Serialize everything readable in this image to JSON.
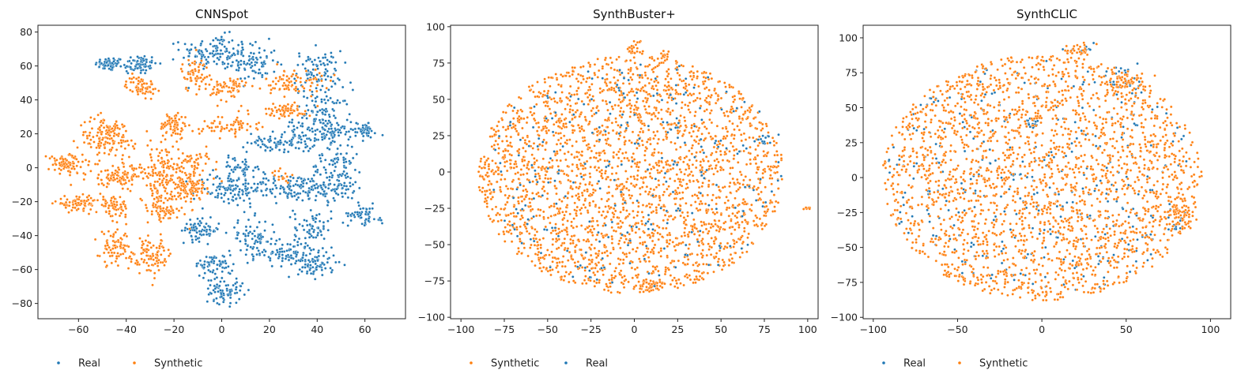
{
  "colors": {
    "real": "#1f77b4",
    "synthetic": "#ff7f0e"
  },
  "chart_data": [
    {
      "type": "scatter",
      "title": "CNNSpot",
      "xlabel": "",
      "ylabel": "",
      "xlim": [
        -77,
        77
      ],
      "ylim": [
        -89,
        84
      ],
      "xticks": [
        "-60",
        "-40",
        "-20",
        "0",
        "20",
        "40",
        "60"
      ],
      "yticks": [
        "-80",
        "-60",
        "-40",
        "-20",
        "0",
        "20",
        "40",
        "60",
        "80"
      ],
      "legend_position": "bottom-left",
      "series": [
        {
          "name": "Real",
          "color_key": "real",
          "clusters": [
            {
              "cx": -47,
              "cy": 61,
              "sx": 3,
              "sy": 2,
              "n": 60
            },
            {
              "cx": -35,
              "cy": 61,
              "sx": 4,
              "sy": 3,
              "n": 70
            },
            {
              "cx": -3,
              "cy": 68,
              "sx": 7,
              "sy": 5,
              "n": 120
            },
            {
              "cx": 13,
              "cy": 62,
              "sx": 5,
              "sy": 6,
              "n": 80
            },
            {
              "cx": 40,
              "cy": 57,
              "sx": 5,
              "sy": 6,
              "n": 90
            },
            {
              "cx": 42,
              "cy": 30,
              "sx": 6,
              "sy": 8,
              "n": 110
            },
            {
              "cx": 25,
              "cy": 15,
              "sx": 7,
              "sy": 3,
              "n": 90
            },
            {
              "cx": 47,
              "cy": 20,
              "sx": 7,
              "sy": 4,
              "n": 80
            },
            {
              "cx": 60,
              "cy": 22,
              "sx": 2,
              "sy": 2,
              "n": 30
            },
            {
              "cx": 8,
              "cy": 0,
              "sx": 5,
              "sy": 3,
              "n": 50
            },
            {
              "cx": 3,
              "cy": -13,
              "sx": 7,
              "sy": 5,
              "n": 100
            },
            {
              "cx": 30,
              "cy": -12,
              "sx": 10,
              "sy": 4,
              "n": 150
            },
            {
              "cx": 48,
              "cy": -5,
              "sx": 6,
              "sy": 8,
              "n": 120
            },
            {
              "cx": 59,
              "cy": -27,
              "sx": 3,
              "sy": 3,
              "n": 50
            },
            {
              "cx": 38,
              "cy": -35,
              "sx": 4,
              "sy": 6,
              "n": 70
            },
            {
              "cx": -9,
              "cy": -37,
              "sx": 4,
              "sy": 3,
              "n": 70
            },
            {
              "cx": 13,
              "cy": -42,
              "sx": 5,
              "sy": 6,
              "n": 80
            },
            {
              "cx": 28,
              "cy": -51,
              "sx": 5,
              "sy": 4,
              "n": 80
            },
            {
              "cx": 40,
              "cy": -57,
              "sx": 4,
              "sy": 4,
              "n": 70
            },
            {
              "cx": -3,
              "cy": -57,
              "sx": 4,
              "sy": 3,
              "n": 60
            },
            {
              "cx": 1,
              "cy": -72,
              "sx": 4,
              "sy": 4,
              "n": 80
            },
            {
              "cx": 66,
              "cy": -31,
              "sx": 1.5,
              "sy": 1,
              "n": 8
            }
          ]
        },
        {
          "name": "Synthetic",
          "color_key": "synthetic",
          "clusters": [
            {
              "cx": -34,
              "cy": 48,
              "sx": 3,
              "sy": 3,
              "n": 70
            },
            {
              "cx": -11,
              "cy": 55,
              "sx": 3,
              "sy": 5,
              "n": 60
            },
            {
              "cx": 3,
              "cy": 47,
              "sx": 4,
              "sy": 4,
              "n": 70
            },
            {
              "cx": 30,
              "cy": 50,
              "sx": 6,
              "sy": 4,
              "n": 80
            },
            {
              "cx": 28,
              "cy": 34,
              "sx": 5,
              "sy": 2,
              "n": 60
            },
            {
              "cx": -48,
              "cy": 18,
              "sx": 6,
              "sy": 6,
              "n": 150
            },
            {
              "cx": -20,
              "cy": 25,
              "sx": 3,
              "sy": 4,
              "n": 70
            },
            {
              "cx": 3,
              "cy": 25,
              "sx": 6,
              "sy": 3,
              "n": 70
            },
            {
              "cx": -65,
              "cy": 2,
              "sx": 4,
              "sy": 3,
              "n": 90
            },
            {
              "cx": -42,
              "cy": -5,
              "sx": 7,
              "sy": 3,
              "n": 110
            },
            {
              "cx": -25,
              "cy": -5,
              "sx": 6,
              "sy": 10,
              "n": 150
            },
            {
              "cx": -12,
              "cy": -10,
              "sx": 5,
              "sy": 4,
              "n": 70
            },
            {
              "cx": -60,
              "cy": -21,
              "sx": 5,
              "sy": 2,
              "n": 80
            },
            {
              "cx": -45,
              "cy": -23,
              "sx": 3,
              "sy": 3,
              "n": 60
            },
            {
              "cx": -25,
              "cy": -25,
              "sx": 3,
              "sy": 4,
              "n": 60
            },
            {
              "cx": -45,
              "cy": -47,
              "sx": 3,
              "sy": 5,
              "n": 70
            },
            {
              "cx": -30,
              "cy": -52,
              "sx": 5,
              "sy": 5,
              "n": 100
            },
            {
              "cx": -15,
              "cy": -10,
              "sx": 4,
              "sy": 10,
              "n": 50
            },
            {
              "cx": 25,
              "cy": -6,
              "sx": 2,
              "sy": 2,
              "n": 15
            },
            {
              "cx": -10,
              "cy": 5,
              "sx": 3,
              "sy": 3,
              "n": 30
            }
          ]
        }
      ]
    },
    {
      "type": "scatter",
      "title": "SynthBuster+",
      "xlabel": "",
      "ylabel": "",
      "xlim": [
        -106,
        106
      ],
      "ylim": [
        -101,
        101
      ],
      "xticks": [
        "-100",
        "-75",
        "-50",
        "-25",
        "0",
        "25",
        "50",
        "75",
        "100"
      ],
      "yticks": [
        "-100",
        "-75",
        "-50",
        "-25",
        "0",
        "25",
        "50",
        "75",
        "100"
      ],
      "legend_position": "bottom-left",
      "series": [
        {
          "name": "Synthetic",
          "color_key": "synthetic",
          "cloud": {
            "cx": -2,
            "cy": -2,
            "rx": 88,
            "ry": 82,
            "n": 2600
          },
          "clusters": [
            {
              "cx": 0,
              "cy": 85,
              "sx": 3,
              "sy": 3,
              "n": 30
            },
            {
              "cx": 17,
              "cy": 80,
              "sx": 2,
              "sy": 2,
              "n": 15
            },
            {
              "cx": 10,
              "cy": -77,
              "sx": 4,
              "sy": 2,
              "n": 35
            },
            {
              "cx": 100,
              "cy": -25,
              "sx": 1,
              "sy": 1,
              "n": 6
            }
          ]
        },
        {
          "name": "Real",
          "color_key": "real",
          "cloud": {
            "cx": 0,
            "cy": 0,
            "rx": 85,
            "ry": 80,
            "n": 260
          },
          "clusters": [
            {
              "cx": 75,
              "cy": 22,
              "sx": 3,
              "sy": 2,
              "n": 12
            }
          ]
        }
      ]
    },
    {
      "type": "scatter",
      "title": "SynthCLIC",
      "xlabel": "",
      "ylabel": "",
      "xlim": [
        -106,
        112
      ],
      "ylim": [
        -101,
        109
      ],
      "xticks": [
        "-100",
        "-50",
        "0",
        "50",
        "100"
      ],
      "yticks": [
        "-100",
        "-75",
        "-50",
        "-25",
        "0",
        "25",
        "50",
        "75",
        "100"
      ],
      "legend_position": "bottom-left",
      "series": [
        {
          "name": "Real",
          "color_key": "real",
          "cloud": {
            "cx": 0,
            "cy": 0,
            "rx": 92,
            "ry": 85,
            "n": 340
          },
          "clusters": [
            {
              "cx": -5,
              "cy": 38,
              "sx": 2,
              "sy": 2,
              "n": 15
            },
            {
              "cx": 50,
              "cy": 70,
              "sx": 6,
              "sy": 5,
              "n": 25
            },
            {
              "cx": 80,
              "cy": -35,
              "sx": 3,
              "sy": 3,
              "n": 12
            },
            {
              "cx": 25,
              "cy": 92,
              "sx": 4,
              "sy": 2,
              "n": 8
            }
          ]
        },
        {
          "name": "Synthetic",
          "color_key": "synthetic",
          "cloud": {
            "cx": 0,
            "cy": 0,
            "rx": 95,
            "ry": 88,
            "n": 2300
          },
          "clusters": [
            {
              "cx": 22,
              "cy": 92,
              "sx": 4,
              "sy": 2,
              "n": 30
            },
            {
              "cx": 50,
              "cy": 70,
              "sx": 6,
              "sy": 5,
              "n": 60
            },
            {
              "cx": 82,
              "cy": -25,
              "sx": 5,
              "sy": 5,
              "n": 60
            }
          ]
        }
      ]
    }
  ]
}
